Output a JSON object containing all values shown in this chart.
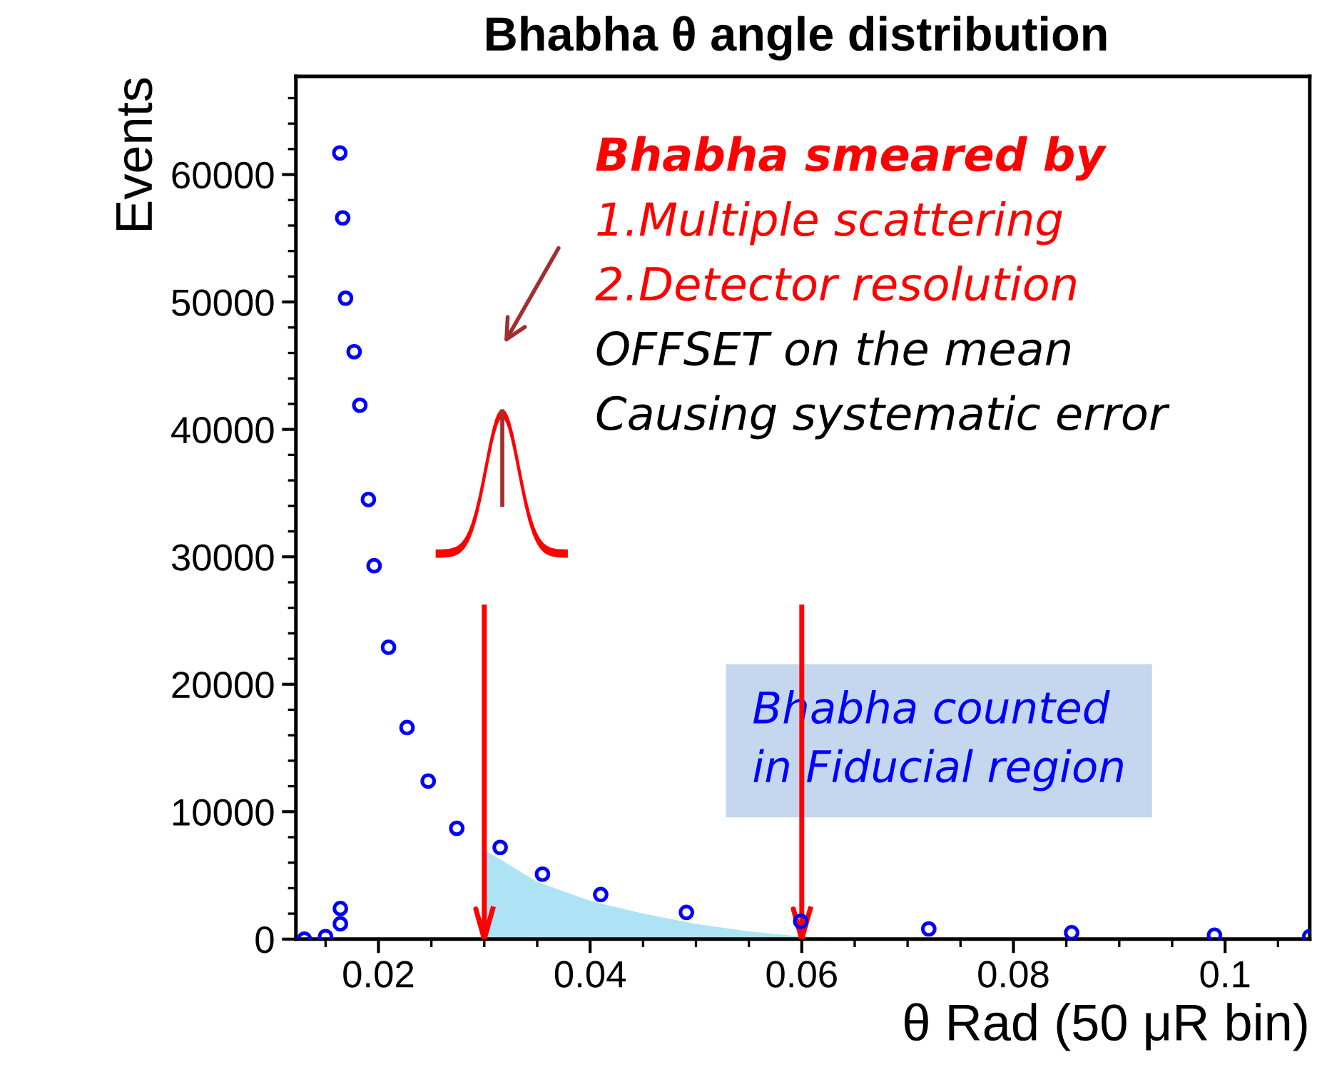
{
  "chart_data": {
    "type": "scatter",
    "title": "Bhabha θ angle distribution",
    "xlabel": "θ Rad (50 μR bin)",
    "ylabel": "Events",
    "series": [
      {
        "color": "#0000ff",
        "x": [
          0.013,
          0.015,
          0.0164,
          0.0164,
          0.01635,
          0.01662,
          0.01689,
          0.0177,
          0.01824,
          0.01905,
          0.01959,
          0.02095,
          0.0227,
          0.0247,
          0.0274,
          0.0315,
          0.0355,
          0.041,
          0.0491,
          0.0599,
          0.072,
          0.0855,
          0.099,
          0.108
        ],
        "values": [
          0,
          200,
          1200,
          2400,
          61700,
          56600,
          50300,
          46100,
          41900,
          34500,
          29300,
          22900,
          16600,
          12400,
          8700,
          7200,
          5100,
          3500,
          2100,
          1400,
          800,
          500,
          300,
          200
        ]
      },
      {
        "type": "area",
        "marker": "none",
        "color": "#aee3f5",
        "x": [
          0.03,
          0.035,
          0.04,
          0.045,
          0.05,
          0.055,
          0.06,
          0.066
        ],
        "values": [
          7000,
          4500,
          3000,
          2000,
          1200,
          600,
          200,
          0
        ]
      }
    ],
    "xlim": [
      0.0122,
      0.108
    ],
    "xticks": [
      0.02,
      0.04,
      0.06,
      0.08,
      0.1
    ],
    "ylim": [
      0,
      67700
    ],
    "yticks": [
      0,
      10000,
      20000,
      30000,
      40000,
      50000,
      60000
    ],
    "marker": "circle",
    "grid": false,
    "ref_lines": [
      {
        "axis": "x",
        "value": 0.03,
        "color": "#ff0000"
      },
      {
        "axis": "x",
        "value": 0.06,
        "color": "#ff0000"
      }
    ],
    "annotations": [
      "Bhabha smeared by",
      "1.Multiple scattering",
      "2.Detector resolution",
      "OFFSET on the mean",
      "Causing systematic error",
      "Bhabha counted\nin Fiducial region"
    ]
  }
}
